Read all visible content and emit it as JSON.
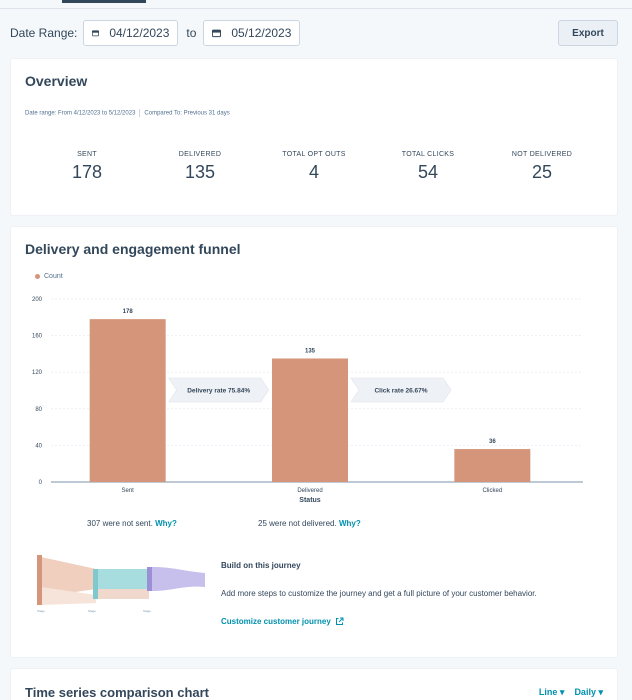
{
  "filters": {
    "date_range_label": "Date Range:",
    "start_date": "04/12/2023",
    "to_label": "to",
    "end_date": "05/12/2023",
    "export_label": "Export"
  },
  "overview": {
    "title": "Overview",
    "date_range_text": "Date range: From 4/12/2023 to 5/12/2023",
    "compared_text": "Compared To: Previous 31 days",
    "kpis": [
      {
        "label": "SENT",
        "value": "178"
      },
      {
        "label": "DELIVERED",
        "value": "135"
      },
      {
        "label": "TOTAL OPT OUTS",
        "value": "4"
      },
      {
        "label": "TOTAL CLICKS",
        "value": "54"
      },
      {
        "label": "NOT DELIVERED",
        "value": "25"
      }
    ]
  },
  "funnel": {
    "title": "Delivery and engagement funnel",
    "not_sent_text": "307 were not sent.",
    "not_delivered_text": "25 were not delivered.",
    "why_label": "Why?",
    "journey_title": "Build on this journey",
    "journey_desc": "Add more steps to customize the journey and get a full picture of your customer behavior.",
    "journey_link": "Customize customer journey",
    "journey_stage_labels": [
      "Stage",
      "Stage",
      "Stage"
    ]
  },
  "chart_data": {
    "type": "bar",
    "legend": "Count",
    "categories": [
      "Sent",
      "Delivered",
      "Clicked"
    ],
    "values": [
      178,
      135,
      36
    ],
    "xlabel": "Status",
    "ylim": [
      0,
      200
    ],
    "yticks": [
      0,
      40,
      80,
      120,
      160,
      200
    ],
    "rate_labels": [
      "Delivery rate 75.84%",
      "Click rate 26.67%"
    ],
    "bar_color": "#d4957a"
  },
  "timeseries": {
    "title": "Time series comparison chart",
    "chart_type": "Line",
    "frequency": "Daily"
  },
  "colors": {
    "accent": "#0091ae",
    "text": "#33475b",
    "bar": "#d4957a",
    "sankey_teal": "#a8dde0",
    "sankey_purple": "#9b8fd6"
  }
}
